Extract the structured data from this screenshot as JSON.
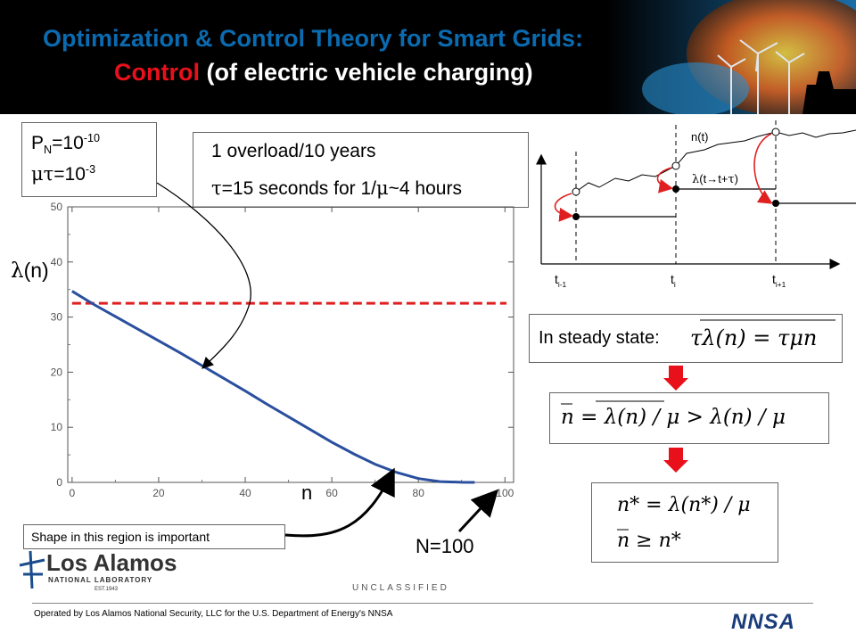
{
  "header": {
    "title_line1": "Optimization & Control Theory for Smart Grids:",
    "title_line2_highlight": "Control",
    "title_line2_rest": " (of electric vehicle charging)"
  },
  "params_box": {
    "pn_base": "P",
    "pn_sub": "N",
    "pn_eq": "=10",
    "pn_exp": "-10",
    "mu_tau_sym": "μτ",
    "mu_tau_eq": "=10",
    "mu_tau_exp": "-3"
  },
  "overload_box": {
    "line1": "1 overload/10 years",
    "line2_sym": "τ",
    "line2_a": "=15 seconds for 1/",
    "line2_mu": "μ",
    "line2_b": "~4 hours"
  },
  "chart": {
    "ylabel_sym": "λ",
    "ylabel_rest": "(n)",
    "xlabel": "n",
    "n_max_label": "N=100",
    "shape_note": "Shape in this region is important"
  },
  "chart_data": {
    "type": "line",
    "title": "",
    "xlabel": "n",
    "ylabel": "λ(n)",
    "xlim": [
      -1,
      102
    ],
    "ylim": [
      0,
      50
    ],
    "x_ticks": [
      0,
      20,
      40,
      60,
      80,
      100
    ],
    "y_ticks": [
      0,
      10,
      20,
      30,
      40,
      50
    ],
    "grid": false,
    "series": [
      {
        "color": "#2a4f9e",
        "x": [
          0,
          5,
          10,
          15,
          20,
          25,
          30,
          35,
          40,
          45,
          50,
          55,
          60,
          65,
          70,
          75,
          80,
          85,
          90,
          93
        ],
        "y": [
          34.7,
          32.3,
          30.1,
          27.9,
          25.7,
          23.5,
          21.2,
          18.9,
          16.6,
          14.2,
          11.9,
          9.6,
          7.3,
          5.2,
          3.3,
          1.8,
          0.7,
          0.15,
          0.02,
          0
        ]
      }
    ],
    "reference_line": {
      "y": 32.5,
      "style": "dashed",
      "color": "#e02020"
    }
  },
  "timeline": {
    "n_label": "n(t)",
    "lambda_label_sym": "λ",
    "lambda_label_a": "(t→t+",
    "lambda_label_tau": "τ",
    "lambda_label_b": ")",
    "ticks": [
      {
        "base": "t",
        "sub": "i-1"
      },
      {
        "base": "t",
        "sub": "i"
      },
      {
        "base": "t",
        "sub": "i+1"
      }
    ]
  },
  "steady_state": {
    "label": "In steady state:",
    "eq1": "τλ(n) = τμn",
    "eq2": "n = λ(n) / μ > λ(n) / μ",
    "eq3a": "n* = λ(n*) / μ",
    "eq3b": "n ≥ n*"
  },
  "footer": {
    "classification": "UNCLASSIFIED",
    "operated_by": "Operated by Los Alamos National Security, LLC for the U.S. Department of Energy's NNSA",
    "lab_name": "Los Alamos",
    "lab_sub": "NATIONAL LABORATORY",
    "lab_est": "EST.1943",
    "nnsa": "NNSA"
  },
  "colors": {
    "title_blue": "#0a6bb0",
    "accent_red": "#e8111b",
    "curve_blue": "#2a4f9e"
  }
}
